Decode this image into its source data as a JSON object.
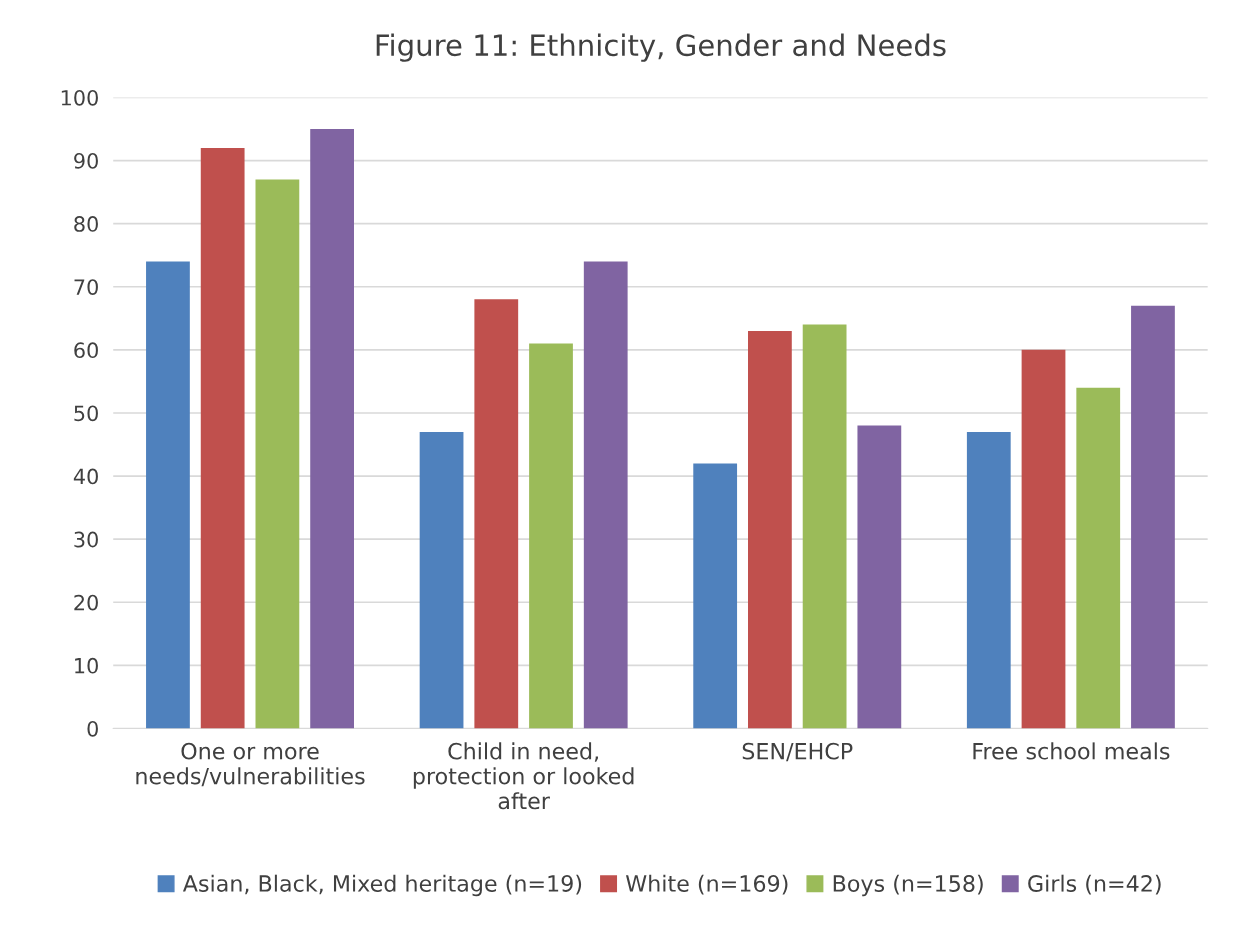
{
  "chart_data": {
    "type": "bar",
    "title": "Figure 11: Ethnicity, Gender and Needs",
    "categories": [
      "One or more\nneeds/vulnerabilities",
      "Child in need,\nprotection or looked\nafter",
      "SEN/EHCP",
      "Free school meals"
    ],
    "series": [
      {
        "name": "Asian, Black, Mixed heritage (n=19)",
        "color": "#4f81bd",
        "values": [
          74,
          47,
          42,
          47
        ]
      },
      {
        "name": "White (n=169)",
        "color": "#c0504d",
        "values": [
          92,
          68,
          63,
          60
        ]
      },
      {
        "name": "Boys (n=158)",
        "color": "#9bbb59",
        "values": [
          87,
          61,
          64,
          54
        ]
      },
      {
        "name": "Girls (n=42)",
        "color": "#8064a2",
        "values": [
          95,
          74,
          48,
          67
        ]
      }
    ],
    "ylim": [
      0,
      100
    ],
    "yticks": [
      0,
      10,
      20,
      30,
      40,
      50,
      60,
      70,
      80,
      90,
      100
    ],
    "grid": "y",
    "legend": "bottom"
  }
}
